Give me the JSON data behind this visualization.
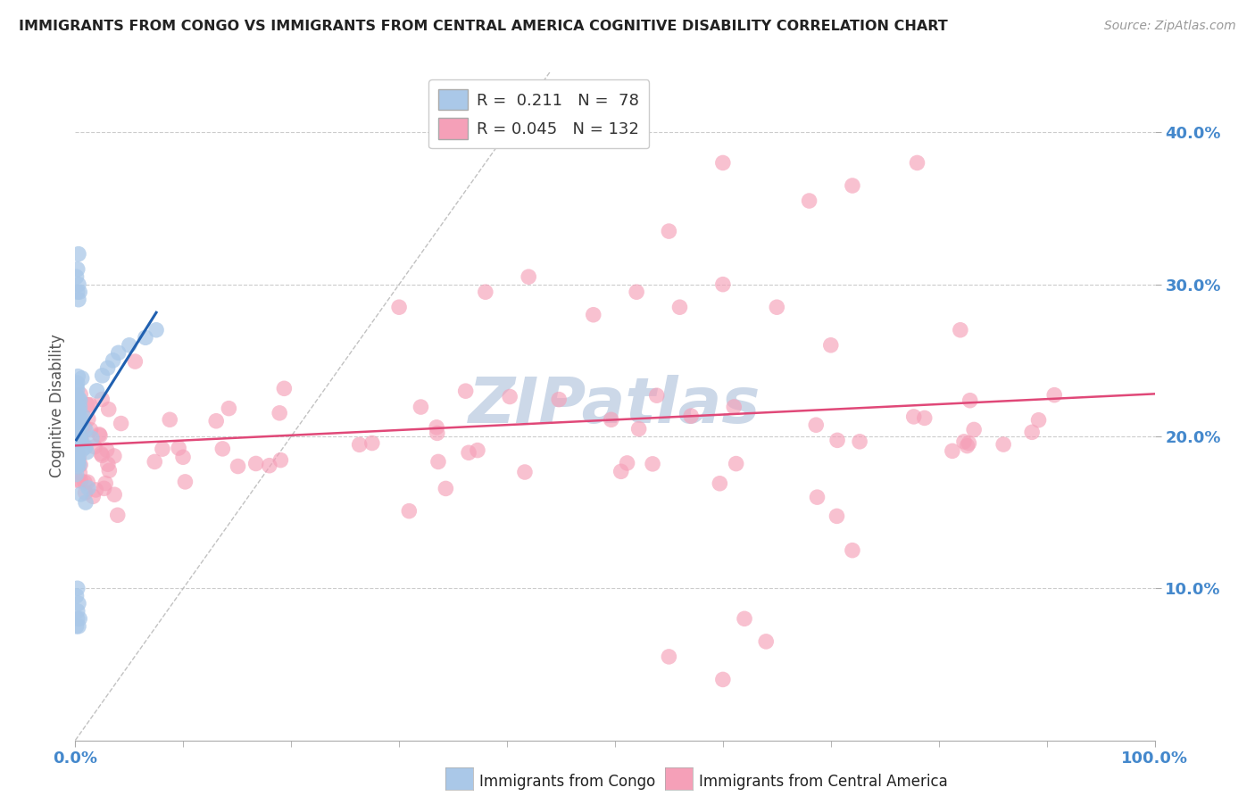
{
  "title": "IMMIGRANTS FROM CONGO VS IMMIGRANTS FROM CENTRAL AMERICA COGNITIVE DISABILITY CORRELATION CHART",
  "source": "Source: ZipAtlas.com",
  "ylabel": "Cognitive Disability",
  "series": [
    {
      "name": "Immigrants from Congo",
      "R": 0.211,
      "N": 78,
      "color": "#aac8e8",
      "line_color": "#2060b0",
      "edge_color": "#aac8e8"
    },
    {
      "name": "Immigrants from Central America",
      "R": 0.045,
      "N": 132,
      "color": "#f5a0b8",
      "line_color": "#e04878",
      "edge_color": "#f5a0b8"
    }
  ],
  "xlim": [
    0.0,
    1.0
  ],
  "ylim": [
    0.0,
    0.44
  ],
  "yticks": [
    0.1,
    0.2,
    0.3,
    0.4
  ],
  "ytick_labels": [
    "10.0%",
    "20.0%",
    "30.0%",
    "40.0%"
  ],
  "xtick_left_label": "0.0%",
  "xtick_right_label": "100.0%",
  "watermark": "ZIPatlas",
  "watermark_color": "#ccd8e8",
  "grid_color": "#cccccc",
  "background_color": "#ffffff",
  "legend_box_colors": [
    "#aac8e8",
    "#f5a0b8"
  ],
  "legend_R_color": "#2060b0",
  "legend_R2_color": "#e04878"
}
